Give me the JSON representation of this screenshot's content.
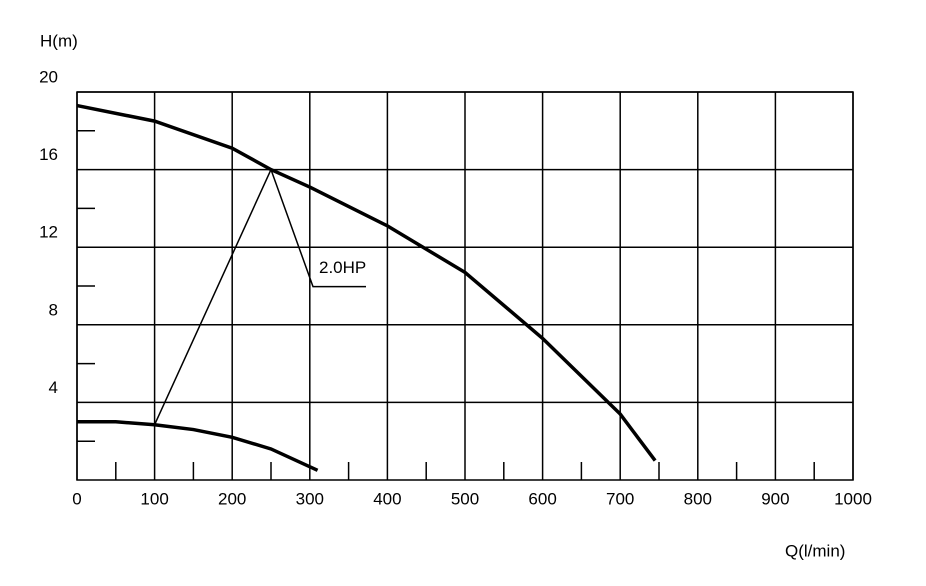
{
  "chart_data": {
    "type": "line",
    "x_label": "Q(l/min)",
    "y_label": "H(m)",
    "series": [
      {
        "color": "#000000",
        "x": [
          0,
          100,
          200,
          250,
          300,
          400,
          500,
          600,
          700,
          745
        ],
        "values": [
          19.3,
          18.5,
          17.1,
          16,
          15.1,
          13.1,
          10.7,
          7.3,
          3.4,
          1.0
        ]
      },
      {
        "color": "#000000",
        "x": [
          0,
          50,
          100,
          150,
          200,
          250,
          310
        ],
        "values": [
          3.0,
          3.0,
          2.85,
          2.6,
          2.2,
          1.6,
          0.5
        ]
      }
    ],
    "annotation": "2.0HP",
    "xlim": [
      0,
      1000
    ],
    "xticks": [
      0,
      100,
      200,
      300,
      400,
      500,
      600,
      700,
      800,
      900,
      1000
    ],
    "ylim": [
      0,
      20
    ],
    "yticks": [
      4,
      8,
      12,
      16,
      20
    ],
    "grid": true
  }
}
